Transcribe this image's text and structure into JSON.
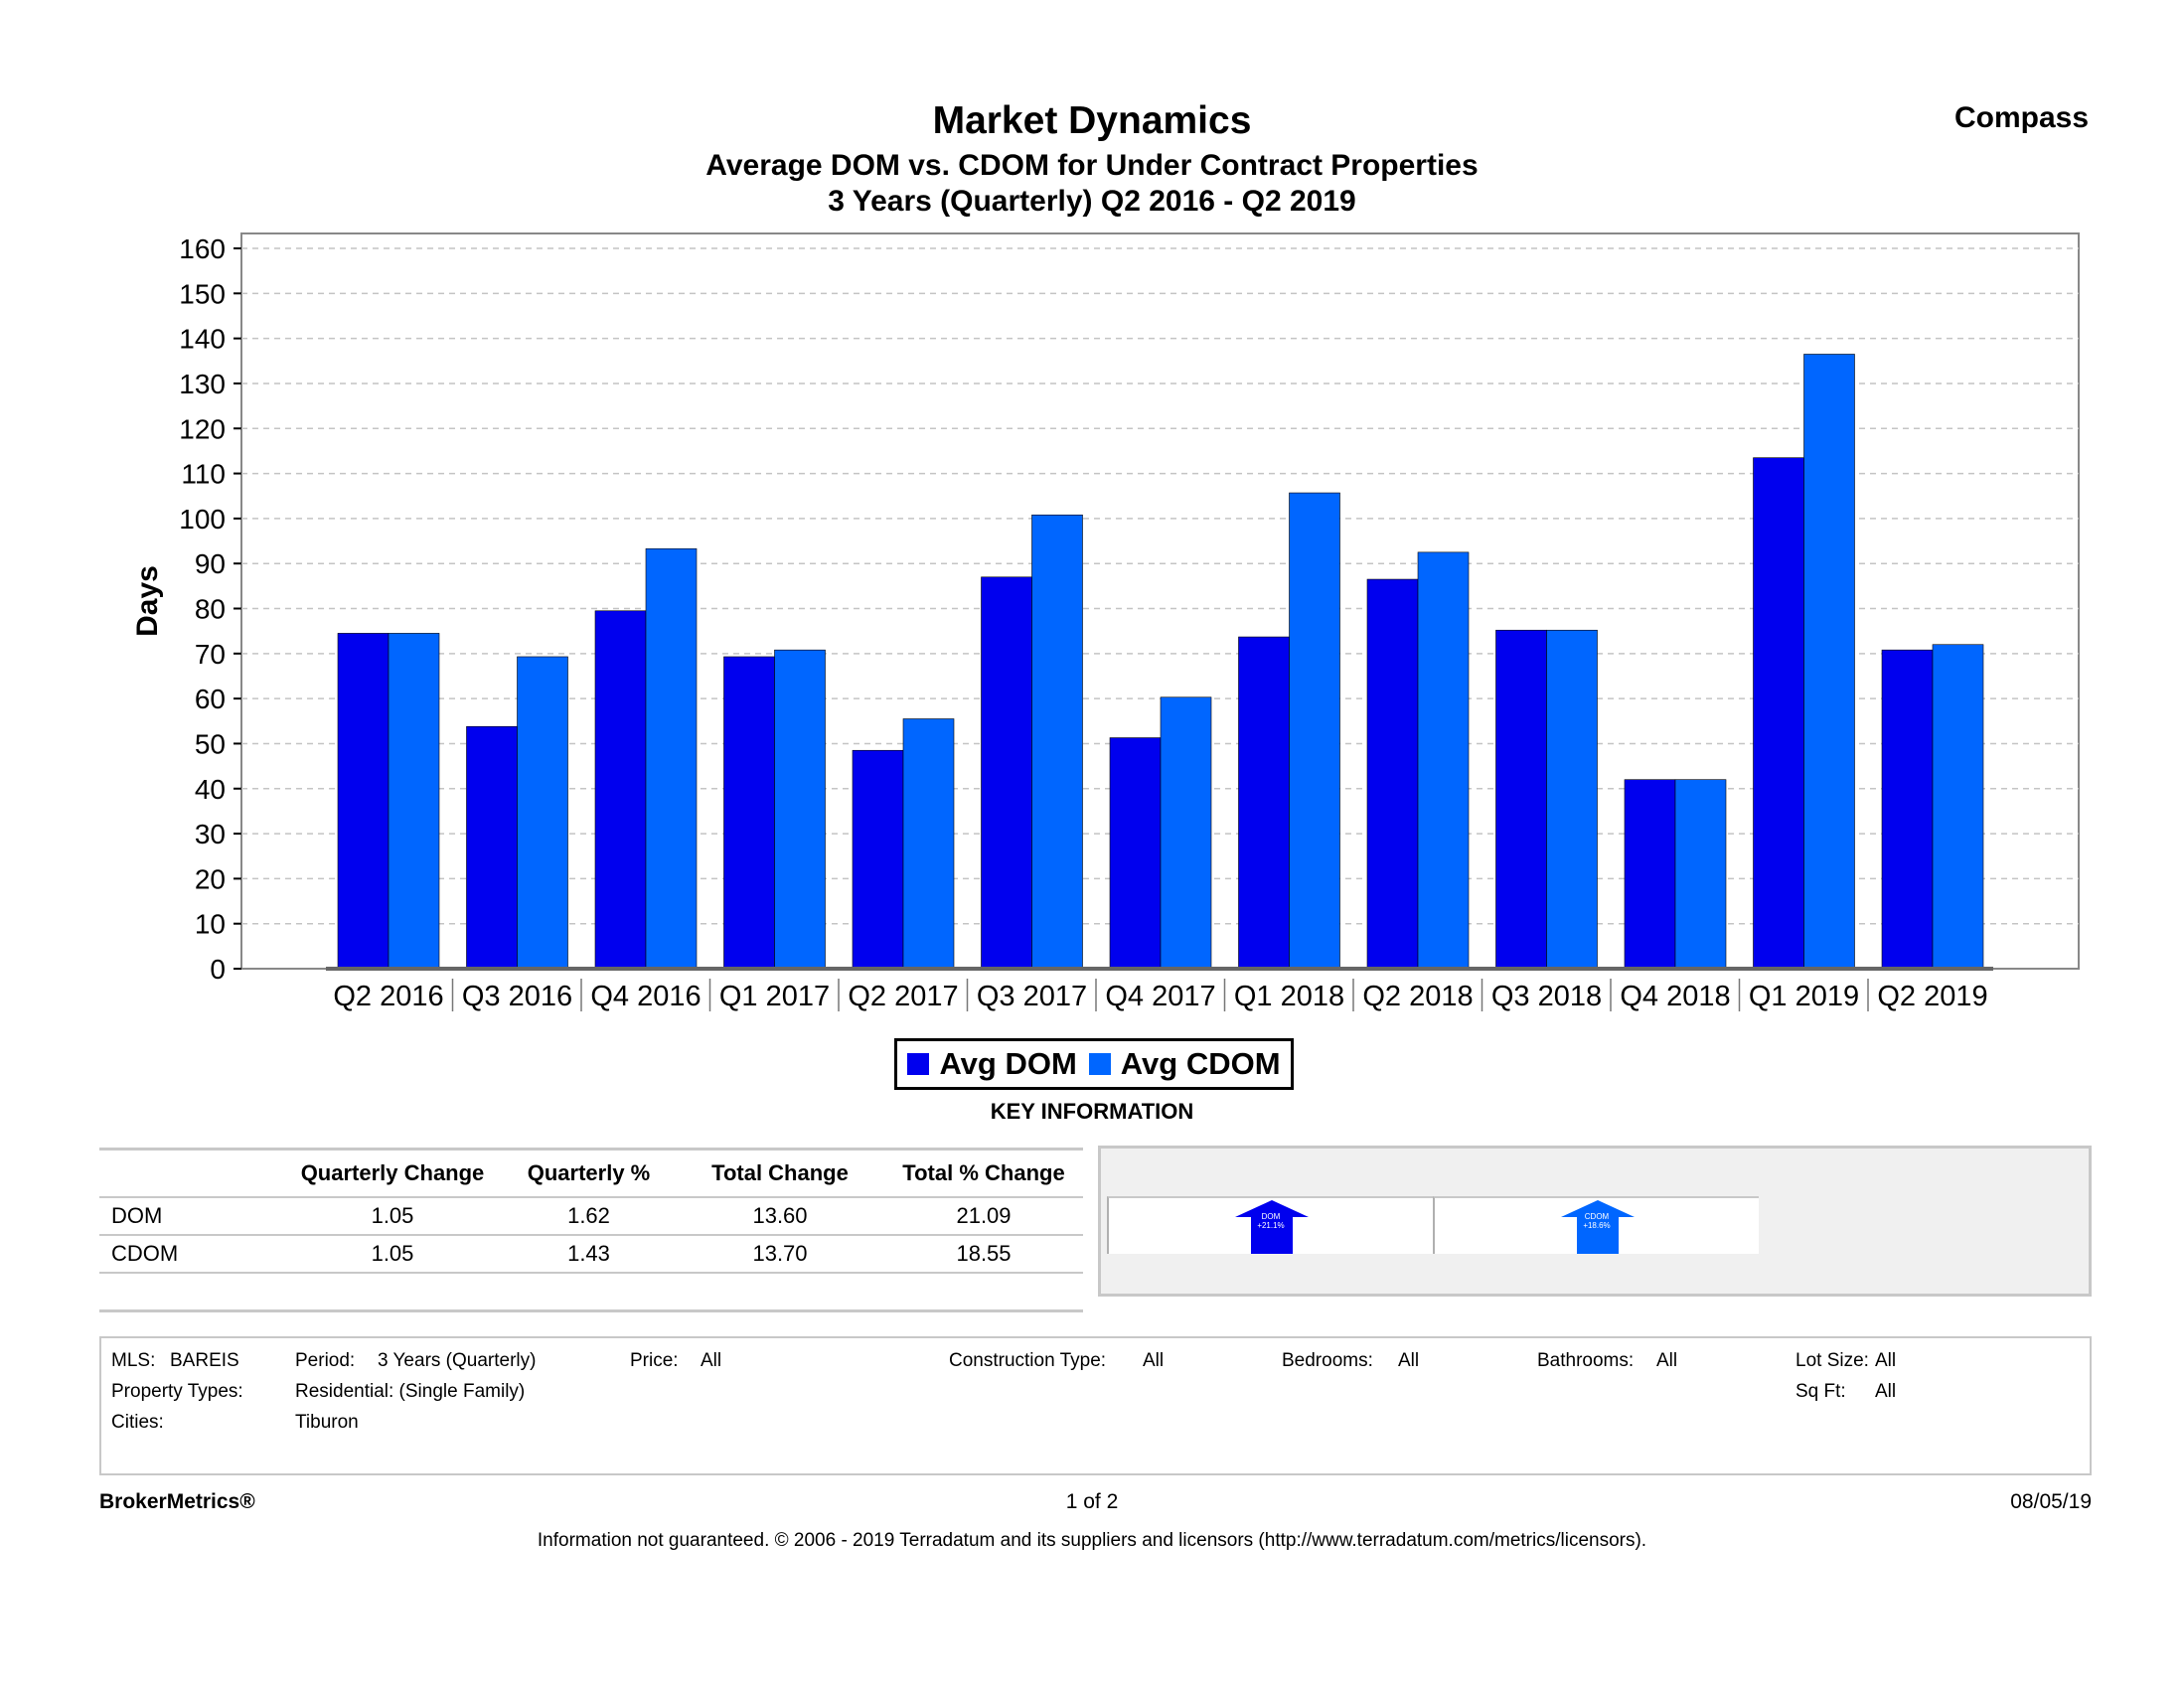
{
  "header": {
    "title": "Market Dynamics",
    "subtitle1": "Average DOM vs. CDOM for Under Contract Properties",
    "subtitle2": "3 Years (Quarterly) Q2 2016 - Q2 2019",
    "brand": "Compass"
  },
  "chart_data": {
    "type": "bar",
    "title": "Market Dynamics",
    "ylabel": "Days",
    "xlabel": "",
    "ylim": [
      0,
      160
    ],
    "yticks": [
      0,
      10,
      20,
      30,
      40,
      50,
      60,
      70,
      80,
      90,
      100,
      110,
      120,
      130,
      140,
      150,
      160
    ],
    "grid": true,
    "legend_position": "bottom-center",
    "categories": [
      "Q2 2016",
      "Q3 2016",
      "Q4 2016",
      "Q1 2017",
      "Q2 2017",
      "Q3 2017",
      "Q4 2017",
      "Q1 2018",
      "Q2 2018",
      "Q3 2018",
      "Q4 2018",
      "Q1 2019",
      "Q2 2019"
    ],
    "series": [
      {
        "name": "Avg DOM",
        "color": "#0000ee",
        "values": [
          74.5,
          53.8,
          79.5,
          69.3,
          48.5,
          87,
          51.3,
          73.7,
          86.5,
          75.2,
          42,
          113.5,
          70.8
        ]
      },
      {
        "name": "Avg CDOM",
        "color": "#0066ff",
        "values": [
          74.5,
          69.3,
          93.3,
          70.8,
          55.5,
          100.8,
          60.3,
          105.7,
          92.5,
          75.2,
          42,
          136.5,
          72
        ]
      }
    ]
  },
  "legend": {
    "dom_label": "Avg DOM",
    "cdom_label": "Avg CDOM"
  },
  "key_info": {
    "title": "KEY INFORMATION",
    "columns": [
      "Quarterly Change",
      "Quarterly %",
      "Total Change",
      "Total % Change"
    ],
    "rows": [
      {
        "label": "DOM",
        "values": [
          "1.05",
          "1.62",
          "13.60",
          "21.09"
        ]
      },
      {
        "label": "CDOM",
        "values": [
          "1.05",
          "1.43",
          "13.70",
          "18.55"
        ]
      }
    ],
    "arrows": [
      {
        "label": "DOM",
        "change": "+21.1%",
        "color": "#0000ee"
      },
      {
        "label": "CDOM",
        "change": "+18.6%",
        "color": "#0066ff"
      }
    ]
  },
  "criteria": {
    "mls_label": "MLS:",
    "mls_value": "BAREIS",
    "period_label": "Period:",
    "period_value": "3 Years (Quarterly)",
    "price_label": "Price:",
    "price_value": "All",
    "construction_label": "Construction Type:",
    "construction_value": "All",
    "bedrooms_label": "Bedrooms:",
    "bedrooms_value": "All",
    "bathrooms_label": "Bathrooms:",
    "bathrooms_value": "All",
    "lotsize_label": "Lot Size:",
    "lotsize_value": "All",
    "property_types_label": "Property Types:",
    "property_types_value": "Residential: (Single Family)",
    "sqft_label": "Sq Ft:",
    "sqft_value": "All",
    "cities_label": "Cities:",
    "cities_value": "Tiburon"
  },
  "footer": {
    "brand": "BrokerMetrics®",
    "page": "1 of 2",
    "date": "08/05/19",
    "disclaimer": "Information not guaranteed.  © 2006 - 2019 Terradatum and its suppliers and licensors (http://www.terradatum.com/metrics/licensors)."
  }
}
